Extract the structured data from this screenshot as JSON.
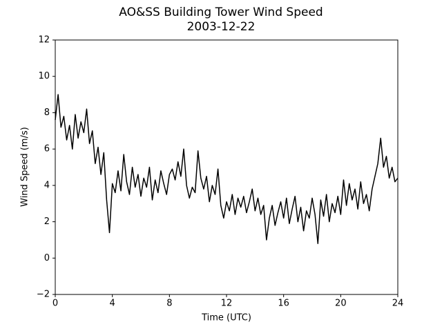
{
  "chart_data": {
    "type": "line",
    "title": "AO&SS Building Tower Wind Speed",
    "subtitle": "2003-12-22",
    "x_label": "Time (UTC)",
    "y_label": "Wind Speed (m/s)",
    "color": "#000000",
    "x": [
      0,
      0.2,
      0.4,
      0.6,
      0.8,
      1,
      1.2,
      1.4,
      1.6,
      1.8,
      2,
      2.2,
      2.4,
      2.6,
      2.8,
      3,
      3.2,
      3.4,
      3.6,
      3.8,
      4,
      4.2,
      4.4,
      4.6,
      4.8,
      5,
      5.2,
      5.4,
      5.6,
      5.8,
      6,
      6.2,
      6.4,
      6.6,
      6.8,
      7,
      7.2,
      7.4,
      7.6,
      7.8,
      8,
      8.2,
      8.4,
      8.6,
      8.8,
      9,
      9.2,
      9.4,
      9.6,
      9.8,
      10,
      10.2,
      10.4,
      10.6,
      10.8,
      11,
      11.2,
      11.4,
      11.6,
      11.8,
      12,
      12.2,
      12.4,
      12.6,
      12.8,
      13,
      13.2,
      13.4,
      13.6,
      13.8,
      14,
      14.2,
      14.4,
      14.6,
      14.8,
      15,
      15.2,
      15.4,
      15.6,
      15.8,
      16,
      16.2,
      16.4,
      16.6,
      16.8,
      17,
      17.2,
      17.4,
      17.6,
      17.8,
      18,
      18.2,
      18.4,
      18.6,
      18.8,
      19,
      19.2,
      19.4,
      19.6,
      19.8,
      20,
      20.2,
      20.4,
      20.6,
      20.8,
      21,
      21.2,
      21.4,
      21.6,
      21.8,
      22,
      22.2,
      22.4,
      22.6,
      22.8,
      23,
      23.2,
      23.4,
      23.6,
      23.8,
      24
    ],
    "values": [
      7.6,
      9.0,
      7.2,
      7.8,
      6.5,
      7.3,
      6.0,
      7.9,
      6.6,
      7.5,
      6.9,
      8.2,
      6.3,
      7.0,
      5.2,
      6.1,
      4.6,
      5.8,
      3.2,
      1.4,
      4.1,
      3.6,
      4.8,
      3.7,
      5.7,
      4.2,
      3.5,
      5.0,
      3.9,
      4.6,
      3.4,
      4.4,
      3.9,
      5.0,
      3.2,
      4.3,
      3.6,
      4.8,
      4.1,
      3.5,
      4.6,
      4.9,
      4.3,
      5.3,
      4.5,
      6.0,
      4.0,
      3.3,
      3.9,
      3.6,
      5.9,
      4.4,
      3.8,
      4.5,
      3.1,
      4.0,
      3.5,
      4.9,
      2.9,
      2.2,
      3.1,
      2.6,
      3.5,
      2.4,
      3.3,
      2.8,
      3.4,
      2.5,
      3.1,
      3.8,
      2.6,
      3.3,
      2.4,
      2.9,
      1.0,
      2.2,
      2.9,
      1.8,
      2.5,
      3.1,
      2.2,
      3.3,
      1.9,
      2.7,
      3.4,
      2.0,
      2.8,
      1.5,
      2.6,
      2.2,
      3.3,
      2.4,
      0.8,
      3.2,
      2.3,
      3.5,
      2.0,
      3.0,
      2.5,
      3.4,
      2.4,
      4.3,
      2.9,
      4.1,
      3.2,
      3.8,
      2.7,
      4.2,
      3.0,
      3.5,
      2.6,
      3.8,
      4.5,
      5.2,
      6.6,
      5.0,
      5.6,
      4.4,
      5.0,
      4.2,
      4.4
    ],
    "xlim": [
      0,
      24
    ],
    "xticks": [
      0,
      4,
      8,
      12,
      16,
      20,
      24
    ],
    "ylim": [
      -2,
      12
    ],
    "yticks": [
      {
        "value": -2,
        "label": "−2"
      },
      0,
      2,
      4,
      6,
      8,
      10,
      12
    ],
    "grid": false
  }
}
